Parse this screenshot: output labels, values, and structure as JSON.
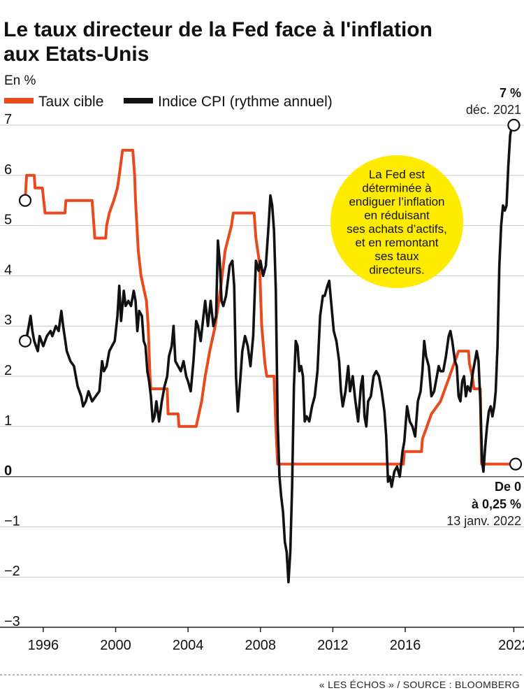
{
  "chart_data": {
    "type": "line",
    "title": "Le taux directeur de la Fed face à l'inflation aux Etats-Unis",
    "title_lines": [
      "Le taux directeur de la Fed face à l'inflation",
      "aux Etats-Unis"
    ],
    "ylabel": "En %",
    "ylim": [
      -3,
      7
    ],
    "yticks": [
      -3,
      -2,
      -1,
      0,
      1,
      2,
      3,
      4,
      5,
      6,
      7
    ],
    "xlim": [
      1995.0,
      2022.1
    ],
    "xticks": [
      1996,
      2000,
      2004,
      2008,
      2012,
      2016,
      2022
    ],
    "grid": true,
    "legend_position": "top-left",
    "series": [
      {
        "name": "Taux cible",
        "color": "#e8491d",
        "points": [
          [
            1995.0,
            5.5
          ],
          [
            1995.08,
            6.0
          ],
          [
            1995.5,
            6.0
          ],
          [
            1995.55,
            5.75
          ],
          [
            1995.95,
            5.75
          ],
          [
            1996.1,
            5.25
          ],
          [
            1997.2,
            5.25
          ],
          [
            1997.25,
            5.5
          ],
          [
            1998.7,
            5.5
          ],
          [
            1998.75,
            5.25
          ],
          [
            1998.85,
            4.75
          ],
          [
            1999.45,
            4.75
          ],
          [
            1999.5,
            5.0
          ],
          [
            1999.65,
            5.25
          ],
          [
            1999.9,
            5.5
          ],
          [
            2000.1,
            5.75
          ],
          [
            2000.2,
            6.0
          ],
          [
            2000.38,
            6.5
          ],
          [
            2000.95,
            6.5
          ],
          [
            2001.05,
            6.0
          ],
          [
            2001.1,
            5.5
          ],
          [
            2001.25,
            4.5
          ],
          [
            2001.4,
            4.0
          ],
          [
            2001.55,
            3.75
          ],
          [
            2001.7,
            3.5
          ],
          [
            2001.8,
            3.0
          ],
          [
            2001.85,
            2.5
          ],
          [
            2001.9,
            2.0
          ],
          [
            2001.95,
            1.75
          ],
          [
            2002.85,
            1.75
          ],
          [
            2002.9,
            1.25
          ],
          [
            2003.45,
            1.25
          ],
          [
            2003.5,
            1.0
          ],
          [
            2004.45,
            1.0
          ],
          [
            2004.6,
            1.25
          ],
          [
            2004.75,
            1.5
          ],
          [
            2004.95,
            2.0
          ],
          [
            2005.2,
            2.5
          ],
          [
            2005.5,
            3.0
          ],
          [
            2005.8,
            3.75
          ],
          [
            2006.05,
            4.5
          ],
          [
            2006.4,
            5.0
          ],
          [
            2006.5,
            5.25
          ],
          [
            2007.65,
            5.25
          ],
          [
            2007.75,
            4.75
          ],
          [
            2007.85,
            4.5
          ],
          [
            2007.95,
            4.25
          ],
          [
            2008.02,
            3.5
          ],
          [
            2008.07,
            3.0
          ],
          [
            2008.25,
            2.25
          ],
          [
            2008.35,
            2.0
          ],
          [
            2008.75,
            2.0
          ],
          [
            2008.8,
            1.5
          ],
          [
            2008.85,
            1.0
          ],
          [
            2008.95,
            0.25
          ],
          [
            2015.9,
            0.25
          ],
          [
            2015.95,
            0.5
          ],
          [
            2016.9,
            0.5
          ],
          [
            2016.95,
            0.75
          ],
          [
            2017.2,
            1.0
          ],
          [
            2017.45,
            1.25
          ],
          [
            2017.95,
            1.5
          ],
          [
            2018.2,
            1.75
          ],
          [
            2018.45,
            2.0
          ],
          [
            2018.7,
            2.25
          ],
          [
            2018.95,
            2.5
          ],
          [
            2019.5,
            2.5
          ],
          [
            2019.55,
            2.25
          ],
          [
            2019.7,
            2.0
          ],
          [
            2019.8,
            1.75
          ],
          [
            2020.15,
            1.75
          ],
          [
            2020.18,
            1.0
          ],
          [
            2020.22,
            0.25
          ],
          [
            2022.1,
            0.25
          ]
        ]
      },
      {
        "name": "Indice CPI (rythme annuel)",
        "color": "#111111",
        "points": [
          [
            1995.0,
            2.7
          ],
          [
            1995.1,
            2.8
          ],
          [
            1995.2,
            3.0
          ],
          [
            1995.3,
            3.2
          ],
          [
            1995.4,
            2.9
          ],
          [
            1995.5,
            2.7
          ],
          [
            1995.6,
            2.6
          ],
          [
            1995.7,
            2.5
          ],
          [
            1995.8,
            2.8
          ],
          [
            1996.0,
            2.6
          ],
          [
            1996.2,
            2.8
          ],
          [
            1996.4,
            2.9
          ],
          [
            1996.5,
            2.8
          ],
          [
            1996.7,
            3.0
          ],
          [
            1996.85,
            2.9
          ],
          [
            1997.0,
            3.3
          ],
          [
            1997.1,
            3.0
          ],
          [
            1997.3,
            2.5
          ],
          [
            1997.5,
            2.3
          ],
          [
            1997.7,
            2.2
          ],
          [
            1997.9,
            1.8
          ],
          [
            1998.1,
            1.6
          ],
          [
            1998.2,
            1.4
          ],
          [
            1998.35,
            1.5
          ],
          [
            1998.5,
            1.7
          ],
          [
            1998.7,
            1.5
          ],
          [
            1998.9,
            1.6
          ],
          [
            1999.1,
            1.7
          ],
          [
            1999.25,
            2.3
          ],
          [
            1999.35,
            2.1
          ],
          [
            1999.5,
            2.2
          ],
          [
            1999.65,
            2.5
          ],
          [
            1999.8,
            2.6
          ],
          [
            1999.95,
            2.7
          ],
          [
            2000.1,
            3.2
          ],
          [
            2000.2,
            3.8
          ],
          [
            2000.3,
            3.1
          ],
          [
            2000.45,
            3.7
          ],
          [
            2000.55,
            3.4
          ],
          [
            2000.7,
            3.5
          ],
          [
            2000.85,
            3.4
          ],
          [
            2001.0,
            3.7
          ],
          [
            2001.1,
            3.5
          ],
          [
            2001.2,
            2.9
          ],
          [
            2001.3,
            3.3
          ],
          [
            2001.45,
            3.2
          ],
          [
            2001.55,
            2.7
          ],
          [
            2001.65,
            2.6
          ],
          [
            2001.75,
            2.1
          ],
          [
            2001.85,
            1.9
          ],
          [
            2001.95,
            1.6
          ],
          [
            2002.05,
            1.1
          ],
          [
            2002.15,
            1.2
          ],
          [
            2002.25,
            1.5
          ],
          [
            2002.4,
            1.1
          ],
          [
            2002.55,
            1.5
          ],
          [
            2002.7,
            1.8
          ],
          [
            2002.85,
            2.0
          ],
          [
            2002.95,
            2.4
          ],
          [
            2003.1,
            2.6
          ],
          [
            2003.2,
            3.0
          ],
          [
            2003.3,
            2.3
          ],
          [
            2003.45,
            2.2
          ],
          [
            2003.6,
            2.1
          ],
          [
            2003.75,
            2.3
          ],
          [
            2003.9,
            2.0
          ],
          [
            2004.0,
            1.9
          ],
          [
            2004.15,
            1.7
          ],
          [
            2004.3,
            2.3
          ],
          [
            2004.45,
            3.1
          ],
          [
            2004.55,
            3.0
          ],
          [
            2004.7,
            2.7
          ],
          [
            2004.85,
            3.2
          ],
          [
            2004.95,
            3.5
          ],
          [
            2005.1,
            3.0
          ],
          [
            2005.25,
            3.5
          ],
          [
            2005.4,
            3.0
          ],
          [
            2005.55,
            3.2
          ],
          [
            2005.65,
            4.7
          ],
          [
            2005.75,
            4.3
          ],
          [
            2005.85,
            3.5
          ],
          [
            2005.95,
            3.4
          ],
          [
            2006.1,
            3.6
          ],
          [
            2006.3,
            4.2
          ],
          [
            2006.45,
            4.3
          ],
          [
            2006.55,
            3.8
          ],
          [
            2006.65,
            2.0
          ],
          [
            2006.75,
            1.3
          ],
          [
            2006.9,
            2.0
          ],
          [
            2007.0,
            2.5
          ],
          [
            2007.15,
            2.8
          ],
          [
            2007.3,
            2.6
          ],
          [
            2007.45,
            2.2
          ],
          [
            2007.6,
            2.8
          ],
          [
            2007.75,
            4.3
          ],
          [
            2007.9,
            4.1
          ],
          [
            2008.0,
            4.3
          ],
          [
            2008.15,
            4.0
          ],
          [
            2008.3,
            4.2
          ],
          [
            2008.45,
            5.0
          ],
          [
            2008.55,
            5.6
          ],
          [
            2008.65,
            5.4
          ],
          [
            2008.75,
            4.9
          ],
          [
            2008.85,
            3.7
          ],
          [
            2008.95,
            1.1
          ],
          [
            2009.05,
            0.0
          ],
          [
            2009.15,
            -0.4
          ],
          [
            2009.25,
            -0.7
          ],
          [
            2009.35,
            -1.3
          ],
          [
            2009.45,
            -1.5
          ],
          [
            2009.55,
            -2.1
          ],
          [
            2009.65,
            -1.5
          ],
          [
            2009.75,
            -0.2
          ],
          [
            2009.85,
            1.8
          ],
          [
            2009.95,
            2.7
          ],
          [
            2010.05,
            2.6
          ],
          [
            2010.15,
            2.1
          ],
          [
            2010.25,
            2.2
          ],
          [
            2010.35,
            2.0
          ],
          [
            2010.45,
            1.1
          ],
          [
            2010.55,
            1.2
          ],
          [
            2010.7,
            1.1
          ],
          [
            2010.85,
            1.4
          ],
          [
            2011.0,
            1.6
          ],
          [
            2011.15,
            2.1
          ],
          [
            2011.3,
            3.2
          ],
          [
            2011.45,
            3.6
          ],
          [
            2011.55,
            3.6
          ],
          [
            2011.7,
            3.8
          ],
          [
            2011.8,
            3.9
          ],
          [
            2011.9,
            3.5
          ],
          [
            2012.05,
            2.9
          ],
          [
            2012.2,
            2.7
          ],
          [
            2012.35,
            2.3
          ],
          [
            2012.45,
            1.7
          ],
          [
            2012.55,
            1.4
          ],
          [
            2012.7,
            1.7
          ],
          [
            2012.85,
            2.2
          ],
          [
            2012.95,
            1.7
          ],
          [
            2013.1,
            2.0
          ],
          [
            2013.25,
            1.5
          ],
          [
            2013.4,
            1.1
          ],
          [
            2013.55,
            1.8
          ],
          [
            2013.65,
            2.0
          ],
          [
            2013.75,
            1.2
          ],
          [
            2013.85,
            1.0
          ],
          [
            2013.95,
            1.5
          ],
          [
            2014.1,
            1.6
          ],
          [
            2014.25,
            2.0
          ],
          [
            2014.4,
            2.1
          ],
          [
            2014.55,
            2.0
          ],
          [
            2014.7,
            1.7
          ],
          [
            2014.85,
            1.3
          ],
          [
            2014.95,
            0.8
          ],
          [
            2015.05,
            -0.1
          ],
          [
            2015.15,
            0.0
          ],
          [
            2015.25,
            -0.2
          ],
          [
            2015.4,
            0.1
          ],
          [
            2015.55,
            0.2
          ],
          [
            2015.7,
            0.0
          ],
          [
            2015.85,
            0.5
          ],
          [
            2015.95,
            0.7
          ],
          [
            2016.1,
            1.4
          ],
          [
            2016.25,
            1.1
          ],
          [
            2016.4,
            1.0
          ],
          [
            2016.55,
            0.8
          ],
          [
            2016.7,
            1.5
          ],
          [
            2016.85,
            1.7
          ],
          [
            2016.95,
            2.1
          ],
          [
            2017.05,
            2.7
          ],
          [
            2017.15,
            2.4
          ],
          [
            2017.3,
            2.2
          ],
          [
            2017.45,
            1.6
          ],
          [
            2017.6,
            1.7
          ],
          [
            2017.7,
            1.9
          ],
          [
            2017.85,
            2.2
          ],
          [
            2017.95,
            2.1
          ],
          [
            2018.1,
            2.1
          ],
          [
            2018.25,
            2.4
          ],
          [
            2018.4,
            2.8
          ],
          [
            2018.5,
            2.9
          ],
          [
            2018.6,
            2.7
          ],
          [
            2018.75,
            2.3
          ],
          [
            2018.85,
            2.2
          ],
          [
            2018.95,
            1.6
          ],
          [
            2019.05,
            1.5
          ],
          [
            2019.15,
            1.9
          ],
          [
            2019.25,
            2.0
          ],
          [
            2019.35,
            1.6
          ],
          [
            2019.45,
            1.8
          ],
          [
            2019.6,
            1.7
          ],
          [
            2019.75,
            2.1
          ],
          [
            2019.85,
            2.3
          ],
          [
            2019.95,
            2.5
          ],
          [
            2020.05,
            2.3
          ],
          [
            2020.15,
            1.5
          ],
          [
            2020.25,
            0.3
          ],
          [
            2020.32,
            0.1
          ],
          [
            2020.42,
            0.6
          ],
          [
            2020.52,
            1.0
          ],
          [
            2020.62,
            1.3
          ],
          [
            2020.72,
            1.4
          ],
          [
            2020.82,
            1.2
          ],
          [
            2020.92,
            1.4
          ],
          [
            2021.0,
            1.7
          ],
          [
            2021.1,
            2.6
          ],
          [
            2021.2,
            4.2
          ],
          [
            2021.3,
            5.0
          ],
          [
            2021.4,
            5.4
          ],
          [
            2021.5,
            5.3
          ],
          [
            2021.6,
            5.4
          ],
          [
            2021.7,
            6.2
          ],
          [
            2021.8,
            6.8
          ],
          [
            2021.9,
            7.0
          ],
          [
            2022.0,
            7.0
          ]
        ]
      }
    ],
    "annotations": {
      "end_cpi_value": "7 %",
      "end_cpi_date": "déc. 2021",
      "end_rate_line1": "De 0",
      "end_rate_line2": "à 0,25 %",
      "end_rate_date": "13 janv. 2022",
      "bubble_lines": [
        "La Fed est",
        "déterminée à",
        "endiguer l’inflation",
        "en réduisant",
        "ses achats d’actifs,",
        "et en remontant",
        "ses taux",
        "directeurs."
      ]
    },
    "bubble_color": "#ffeb00"
  },
  "source": "« LES ÉCHOS » / SOURCE : BLOOMBERG"
}
